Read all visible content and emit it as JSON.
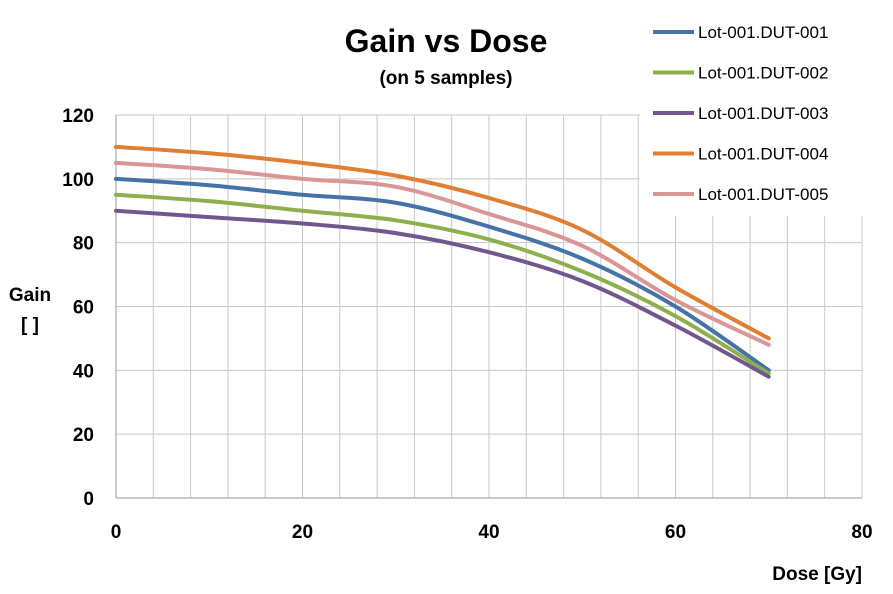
{
  "chart_data": {
    "type": "line",
    "title": "Gain vs Dose",
    "subtitle": "(on 5 samples)",
    "xlabel": "Dose [Gy]",
    "ylabel_lines": [
      "Gain",
      "[ ]"
    ],
    "xlim": [
      0,
      80
    ],
    "ylim": [
      0,
      120
    ],
    "x_ticks": [
      0,
      20,
      40,
      60,
      80
    ],
    "y_ticks": [
      0,
      20,
      40,
      60,
      80,
      100,
      120
    ],
    "grid": true,
    "legend_position": "top-right",
    "series": [
      {
        "name": "Lot-001.DUT-001",
        "color": "#4572A7",
        "x": [
          0,
          10,
          20,
          30,
          40,
          50,
          60,
          70
        ],
        "y": [
          100,
          98,
          95,
          92.5,
          85,
          75,
          60,
          40
        ]
      },
      {
        "name": "Lot-001.DUT-002",
        "color": "#8DB04D",
        "x": [
          0,
          10,
          20,
          30,
          40,
          50,
          60,
          70
        ],
        "y": [
          95,
          93,
          90,
          87,
          81,
          71,
          57,
          39
        ]
      },
      {
        "name": "Lot-001.DUT-003",
        "color": "#70588F",
        "x": [
          0,
          10,
          20,
          30,
          40,
          50,
          60,
          70
        ],
        "y": [
          90,
          88,
          86,
          83,
          77,
          68,
          54,
          38
        ]
      },
      {
        "name": "Lot-001.DUT-004",
        "color": "#E07F31",
        "x": [
          0,
          10,
          20,
          30,
          40,
          50,
          60,
          70
        ],
        "y": [
          110,
          108,
          105,
          101,
          94,
          84,
          66,
          50
        ]
      },
      {
        "name": "Lot-001.DUT-005",
        "color": "#D99694",
        "x": [
          0,
          10,
          20,
          30,
          40,
          50,
          60,
          70
        ],
        "y": [
          105,
          103,
          100,
          97.5,
          89,
          79,
          62,
          48
        ]
      }
    ]
  }
}
